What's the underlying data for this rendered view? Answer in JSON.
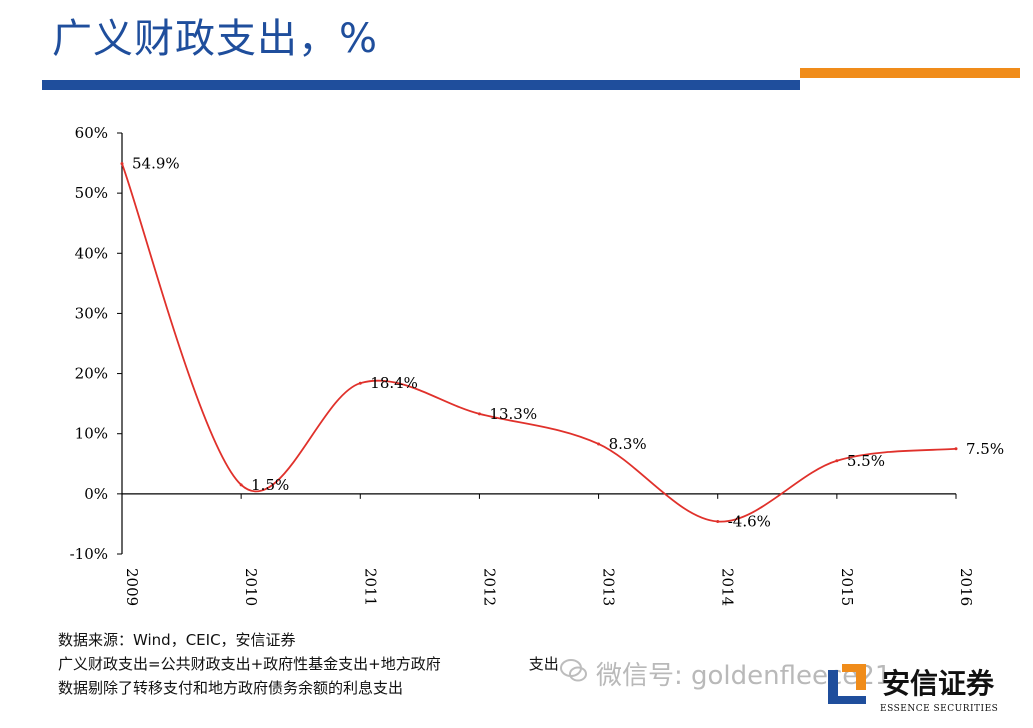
{
  "header": {
    "title": "广义财政支出，%",
    "accent_blue": "#1f4e9c",
    "accent_orange": "#f08c1a"
  },
  "chart_data": {
    "type": "line",
    "categories": [
      "2009",
      "2010",
      "2011",
      "2012",
      "2013",
      "2014",
      "2015",
      "2016"
    ],
    "series": [
      {
        "color": "#e0312b",
        "values": [
          54.9,
          1.5,
          18.4,
          13.3,
          8.3,
          -4.6,
          5.5,
          7.5
        ]
      }
    ],
    "data_labels": [
      "54.9%",
      "1.5%",
      "18.4%",
      "13.3%",
      "8.3%",
      "-4.6%",
      "5.5%",
      "7.5%"
    ],
    "y_ticks": [
      -10,
      0,
      10,
      20,
      30,
      40,
      50,
      60
    ],
    "y_tick_labels": [
      "-10%",
      "0%",
      "10%",
      "20%",
      "30%",
      "40%",
      "50%",
      "60%"
    ],
    "ylim": [
      -10,
      60
    ],
    "grid": false,
    "smooth": true
  },
  "notes": [
    "数据来源：Wind，CEIC，安信证券",
    "广义财政支出=公共财政支出+政府性基金支出+地方政府",
    "数据剔除了转移支付和地方政府债务余额的利息支出"
  ],
  "notes_tail": "支出",
  "watermark": {
    "text": "微信号: goldenfleece21",
    "icon": "wechat-icon"
  },
  "logo": {
    "name_cn": "安信证券",
    "name_en": "ESSENCE SECURITIES",
    "mark": "essence-logo-mark"
  }
}
